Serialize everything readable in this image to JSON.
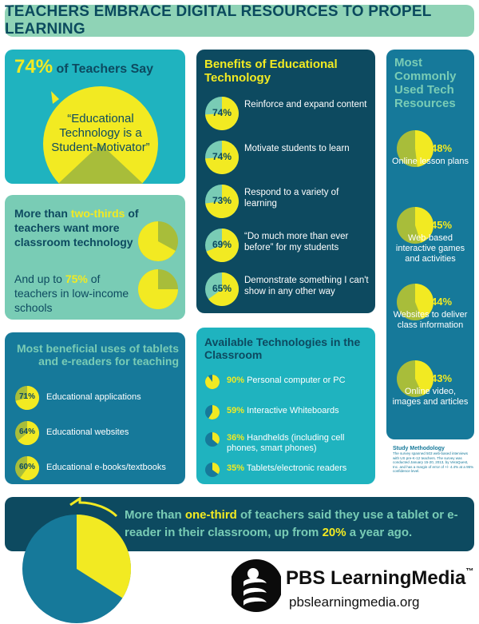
{
  "title": "TEACHERS EMBRACE DIGITAL RESOURCES TO PROPEL LEARNING",
  "colors": {
    "yellow": "#f2ea22",
    "olive": "#a8bd3a",
    "teal": "#1fb3bf",
    "mint": "#79ccb5",
    "blue": "#16799a",
    "navy": "#0d4a60"
  },
  "motivator": {
    "pct": "74%",
    "lead": "of Teachers Say",
    "quote": "“Educational Technology is a Student-Motivator”",
    "value": 74
  },
  "want_more": {
    "line1": "More than",
    "highlight1": "two-thirds",
    "line2": "of teachers want more classroom technology",
    "line3": "And up to",
    "highlight2": "75%",
    "line4": "of teachers in low-income schools",
    "pie1_value": 67,
    "pie2_value": 75
  },
  "benefits": {
    "title": "Benefits of Educational Technology",
    "items": [
      {
        "pct": "74%",
        "label": "Reinforce and expand content",
        "value": 74
      },
      {
        "pct": "74%",
        "label": "Motivate students to learn",
        "value": 74
      },
      {
        "pct": "73%",
        "label": "Respond to a variety of learning",
        "value": 73
      },
      {
        "pct": "69%",
        "label": "“Do much more than ever before” for my students",
        "value": 69
      },
      {
        "pct": "65%",
        "label": "Demonstrate something I can't show in any other way",
        "value": 65
      }
    ]
  },
  "resources": {
    "title": "Most Commonly Used Tech Resources",
    "items": [
      {
        "pct": "48%",
        "label": "Online lesson plans",
        "value": 48
      },
      {
        "pct": "45%",
        "label": "Web-based interactive games and activities",
        "value": 45
      },
      {
        "pct": "44%",
        "label": "Websites to deliver class information",
        "value": 44
      },
      {
        "pct": "43%",
        "label": "Online video, images and articles",
        "value": 43
      }
    ]
  },
  "tablets": {
    "title": "Most beneficial uses of tablets and e-readers for teaching",
    "items": [
      {
        "pct": "71%",
        "label": "Educational applications",
        "value": 71
      },
      {
        "pct": "64%",
        "label": "Educational websites",
        "value": 64
      },
      {
        "pct": "60%",
        "label": "Educational e-books/textbooks",
        "value": 60
      }
    ]
  },
  "available": {
    "title": "Available Technologies in the Classroom",
    "items": [
      {
        "pct": "90%",
        "label": "Personal computer or PC",
        "value": 90
      },
      {
        "pct": "59%",
        "label": "Interactive Whiteboards",
        "value": 59
      },
      {
        "pct": "36%",
        "label": "Handhelds (including cell phones, smart phones)",
        "value": 36
      },
      {
        "pct": "35%",
        "label": "Tablets/electronic readers",
        "value": 35
      }
    ]
  },
  "methodology": {
    "title": "Study Methodology",
    "body": "The survey spanned 503 web-based interviews with US pre-K-12 teachers. The survey was conducted January 15-20, 2013, by VeraQuest, Inc. and has a margin of error of +/- 4.4% at a 95% confidence level."
  },
  "bottom": {
    "text1": "More than",
    "highlight1": "one-third",
    "text2": "of teachers said they use a tablet or e-reader in their classroom, up from",
    "highlight2": "20%",
    "text3": "a year ago.",
    "pie_value": 34
  },
  "brand": {
    "name": "PBS LearningMedia",
    "tm": "™",
    "url": "pbslearningmedia.org"
  }
}
